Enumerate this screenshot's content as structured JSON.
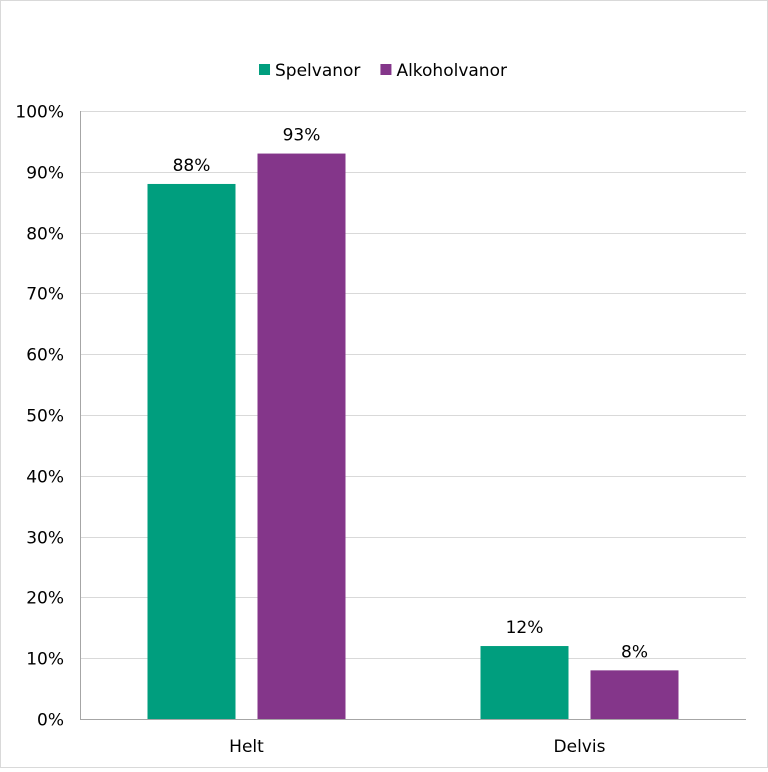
{
  "chart_data": {
    "type": "bar",
    "title": "",
    "xlabel": "",
    "ylabel": "",
    "categories": [
      "Helt",
      "Delvis"
    ],
    "series": [
      {
        "name": "Spelvanor",
        "values": [
          88,
          12
        ],
        "labels": [
          "88%",
          "12%"
        ],
        "color": "#009e7e"
      },
      {
        "name": "Alkoholvanor",
        "values": [
          93,
          8
        ],
        "labels": [
          "93%",
          "8%"
        ],
        "color": "#84368a"
      }
    ],
    "ylim": [
      0,
      100
    ],
    "yticks": [
      0,
      10,
      20,
      30,
      40,
      50,
      60,
      70,
      80,
      90,
      100
    ],
    "ytick_labels": [
      "0%",
      "10%",
      "20%",
      "30%",
      "40%",
      "50%",
      "60%",
      "70%",
      "80%",
      "90%",
      "100%"
    ],
    "grid": true,
    "legend_position": "top-center",
    "colors": {
      "gridline": "#d9d9d9",
      "axis": "#a6a6a6"
    }
  }
}
